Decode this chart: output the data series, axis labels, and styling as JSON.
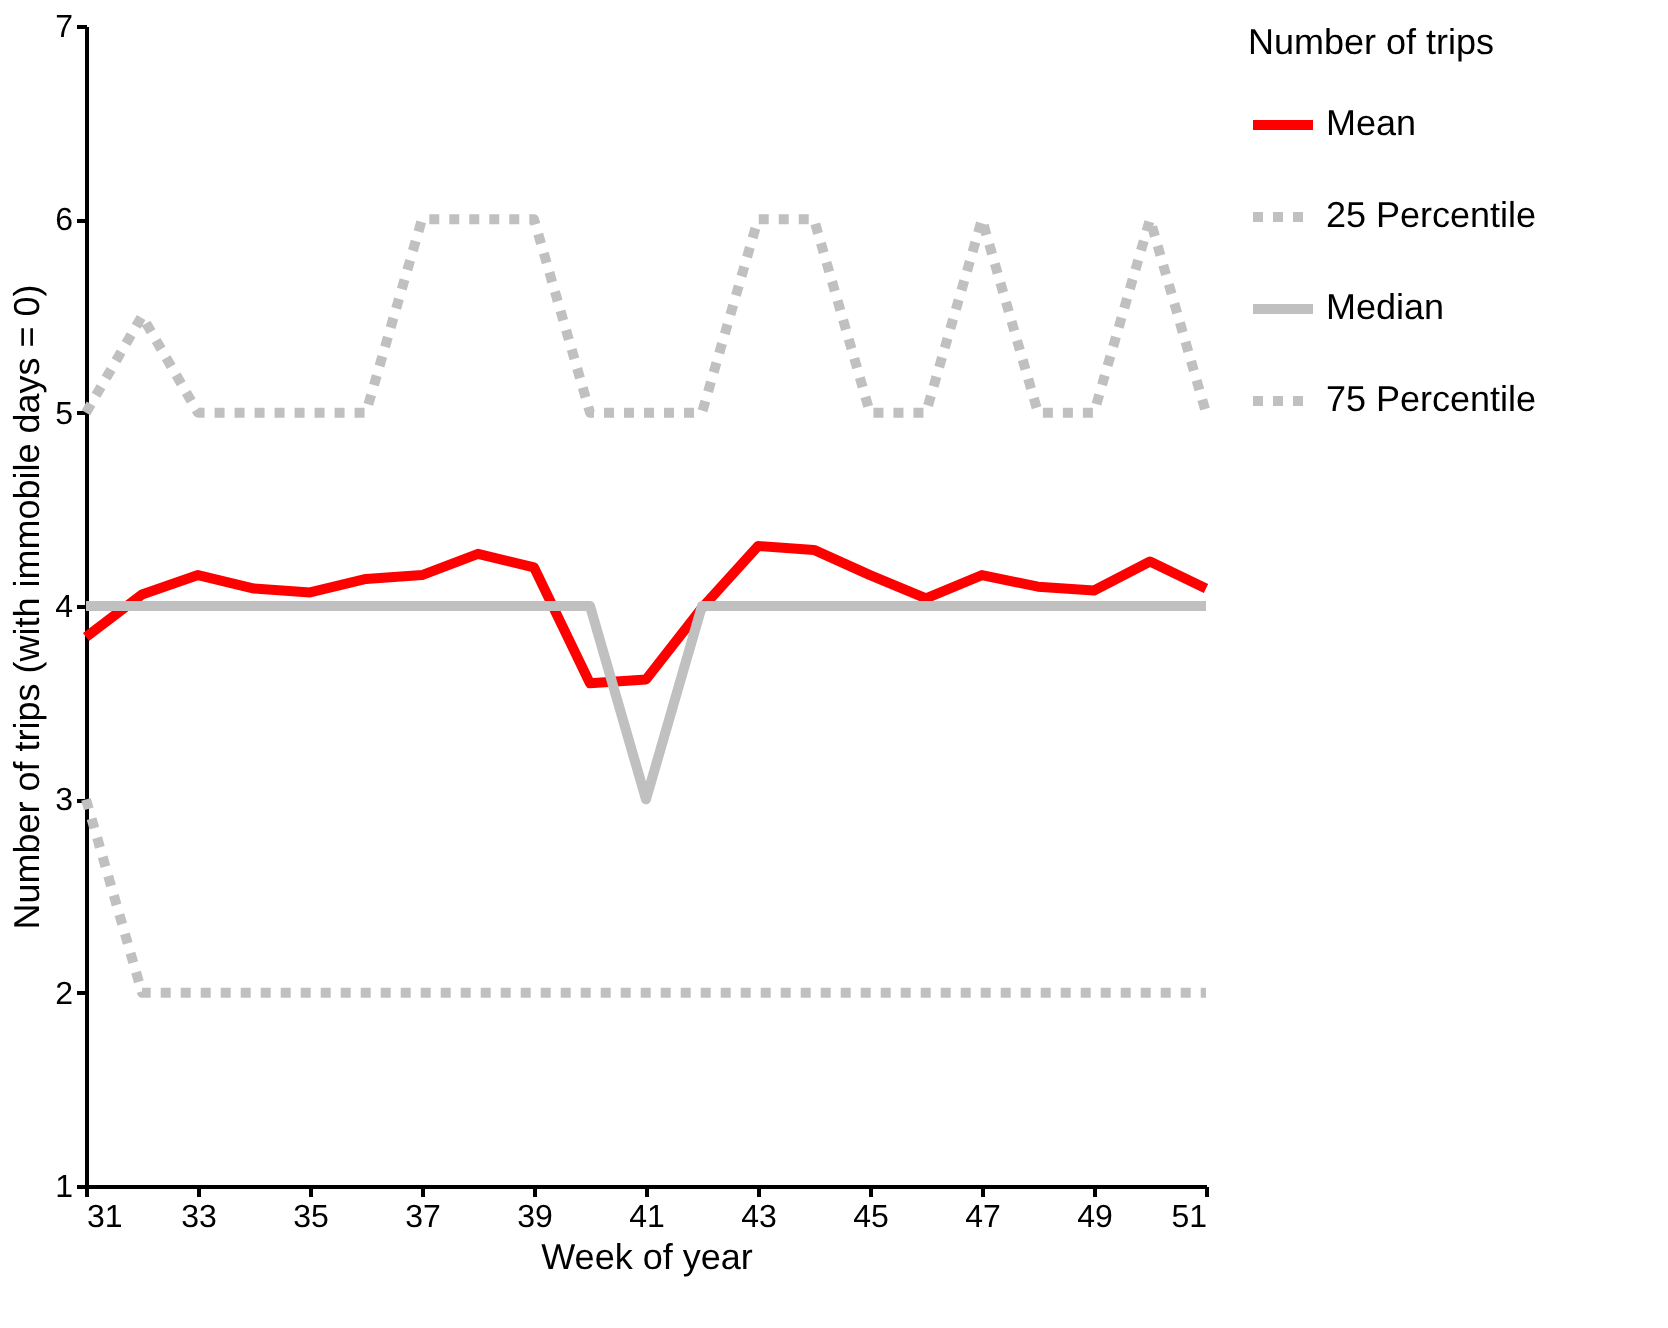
{
  "chart_data": {
    "type": "line",
    "xlabel": "Week of year",
    "ylabel": "Number of trips (with immobile days = 0)",
    "legend_title": "Number of trips",
    "legend": "right",
    "grid": false,
    "marker": "none",
    "x": [
      31,
      32,
      33,
      34,
      35,
      36,
      37,
      38,
      39,
      40,
      41,
      42,
      43,
      44,
      45,
      46,
      47,
      48,
      49,
      50,
      51
    ],
    "xlim": [
      31,
      51
    ],
    "xticks": [
      31,
      33,
      35,
      37,
      39,
      41,
      43,
      45,
      47,
      49,
      51
    ],
    "ylim": [
      1,
      7
    ],
    "yticks": [
      1,
      2,
      3,
      4,
      5,
      6,
      7
    ],
    "series": [
      {
        "name": "Mean",
        "color": "#ff0000",
        "line_style": "solid",
        "values": [
          3.84,
          4.06,
          4.16,
          4.09,
          4.07,
          4.14,
          4.16,
          4.27,
          4.2,
          3.6,
          3.62,
          3.99,
          4.31,
          4.29,
          4.16,
          4.04,
          4.16,
          4.1,
          4.08,
          4.23,
          4.09
        ]
      },
      {
        "name": "25 Percentile",
        "color": "#c0c0c0",
        "line_style": "dotted",
        "values": [
          3,
          2,
          2,
          2,
          2,
          2,
          2,
          2,
          2,
          2,
          2,
          2,
          2,
          2,
          2,
          2,
          2,
          2,
          2,
          2,
          2
        ]
      },
      {
        "name": "Median",
        "color": "#c0c0c0",
        "line_style": "solid",
        "values": [
          4,
          4,
          4,
          4,
          4,
          4,
          4,
          4,
          4,
          4,
          3,
          4,
          4,
          4,
          4,
          4,
          4,
          4,
          4,
          4,
          4
        ]
      },
      {
        "name": "75 Percentile",
        "color": "#c0c0c0",
        "line_style": "dotted",
        "values": [
          5,
          5.5,
          5,
          5,
          5,
          5,
          6,
          6,
          6,
          5,
          5,
          5,
          6,
          6,
          5,
          5,
          6,
          5,
          5,
          6,
          5
        ]
      }
    ]
  }
}
